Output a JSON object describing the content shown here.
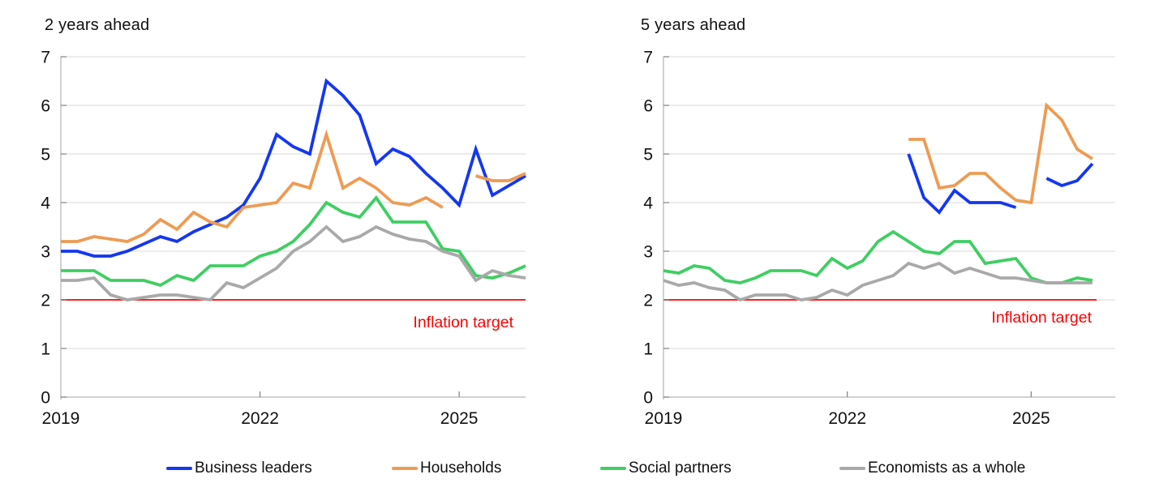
{
  "colors": {
    "blue": "#1437f0",
    "orange": "#ee9b53",
    "green": "#3fce63",
    "gray": "#a9a9a9",
    "red": "#ff0000",
    "grid": "#d9d9d9",
    "axis": "#b8b8b8",
    "tick": "#808080",
    "text": "#111111"
  },
  "legend": {
    "items": [
      {
        "label": "Business leaders",
        "color": "blue"
      },
      {
        "label": "Households",
        "color": "orange"
      },
      {
        "label": "Social partners",
        "color": "green"
      },
      {
        "label": "Economists as a whole",
        "color": "gray"
      }
    ]
  },
  "chart_data": [
    {
      "type": "line",
      "title": "2 years ahead",
      "x": [
        "2019Q1",
        "2019Q2",
        "2019Q3",
        "2019Q4",
        "2020Q1",
        "2020Q2",
        "2020Q3",
        "2020Q4",
        "2021Q1",
        "2021Q2",
        "2021Q3",
        "2021Q4",
        "2022Q1",
        "2022Q2",
        "2022Q3",
        "2022Q4",
        "2023Q1",
        "2023Q2",
        "2023Q3",
        "2023Q4",
        "2024Q1",
        "2024Q2",
        "2024Q3",
        "2024Q4",
        "2025Q1",
        "2025Q2",
        "2025Q3",
        "2025Q4",
        "2026Q1"
      ],
      "xticks": [
        {
          "label": "2019",
          "index": 0
        },
        {
          "label": "2022",
          "index": 12
        },
        {
          "label": "2025",
          "index": 24
        }
      ],
      "ylim": [
        0,
        7
      ],
      "yticks": [
        "0",
        "1",
        "2",
        "3",
        "4",
        "5",
        "6",
        "7"
      ],
      "grid": true,
      "target_line": {
        "value": 2,
        "label": "Inflation target"
      },
      "series": [
        {
          "name": "Business leaders",
          "color": "blue",
          "values": [
            3.0,
            3.0,
            2.9,
            2.9,
            3.0,
            3.15,
            3.3,
            3.2,
            3.4,
            3.55,
            3.7,
            3.95,
            4.5,
            5.4,
            5.15,
            5.0,
            6.5,
            6.2,
            5.8,
            4.8,
            5.1,
            4.95,
            4.6,
            4.3,
            3.95,
            5.1,
            4.15,
            4.35,
            4.55
          ]
        },
        {
          "name": "Households",
          "color": "orange",
          "values": [
            3.2,
            3.2,
            3.3,
            3.25,
            3.2,
            3.35,
            3.65,
            3.45,
            3.8,
            3.6,
            3.5,
            3.9,
            3.95,
            4.0,
            4.4,
            4.3,
            5.4,
            4.3,
            4.5,
            4.3,
            4.0,
            3.95,
            4.1,
            3.9,
            null,
            4.55,
            4.45,
            4.45,
            4.6
          ]
        },
        {
          "name": "Social partners",
          "color": "green",
          "values": [
            2.6,
            2.6,
            2.6,
            2.4,
            2.4,
            2.4,
            2.3,
            2.5,
            2.4,
            2.7,
            2.7,
            2.7,
            2.9,
            3.0,
            3.2,
            3.55,
            4.0,
            3.8,
            3.7,
            4.1,
            3.6,
            3.6,
            3.6,
            3.05,
            3.0,
            2.5,
            2.45,
            2.55,
            2.7
          ]
        },
        {
          "name": "Economists as a whole",
          "color": "gray",
          "values": [
            2.4,
            2.4,
            2.45,
            2.1,
            2.0,
            2.05,
            2.1,
            2.1,
            2.05,
            2.0,
            2.35,
            2.25,
            2.45,
            2.65,
            3.0,
            3.2,
            3.5,
            3.2,
            3.3,
            3.5,
            3.35,
            3.25,
            3.2,
            3.0,
            2.9,
            2.4,
            2.6,
            2.5,
            2.45
          ]
        }
      ]
    },
    {
      "type": "line",
      "title": "5 years ahead",
      "x": [
        "2019Q1",
        "2019Q2",
        "2019Q3",
        "2019Q4",
        "2020Q1",
        "2020Q2",
        "2020Q3",
        "2020Q4",
        "2021Q1",
        "2021Q2",
        "2021Q3",
        "2021Q4",
        "2022Q1",
        "2022Q2",
        "2022Q3",
        "2022Q4",
        "2023Q1",
        "2023Q2",
        "2023Q3",
        "2023Q4",
        "2024Q1",
        "2024Q2",
        "2024Q3",
        "2024Q4",
        "2025Q1",
        "2025Q2",
        "2025Q3",
        "2025Q4",
        "2026Q1"
      ],
      "xticks": [
        {
          "label": "2019",
          "index": 0
        },
        {
          "label": "2022",
          "index": 12
        },
        {
          "label": "2025",
          "index": 24
        }
      ],
      "ylim": [
        0,
        7
      ],
      "yticks": [
        "0",
        "1",
        "2",
        "3",
        "4",
        "5",
        "6",
        "7"
      ],
      "grid": true,
      "target_line": {
        "value": 2,
        "label": "Inflation target"
      },
      "series": [
        {
          "name": "Business leaders",
          "color": "blue",
          "values": [
            null,
            null,
            null,
            null,
            null,
            null,
            null,
            null,
            null,
            null,
            null,
            null,
            null,
            null,
            null,
            null,
            5.0,
            4.1,
            3.8,
            4.25,
            4.0,
            4.0,
            4.0,
            3.9,
            null,
            4.5,
            4.35,
            4.45,
            4.8
          ]
        },
        {
          "name": "Households",
          "color": "orange",
          "values": [
            null,
            null,
            null,
            null,
            null,
            null,
            null,
            null,
            null,
            null,
            null,
            null,
            null,
            null,
            null,
            null,
            5.3,
            5.3,
            4.3,
            4.35,
            4.6,
            4.6,
            4.3,
            4.05,
            4.0,
            6.0,
            5.7,
            5.1,
            4.9
          ]
        },
        {
          "name": "Social partners",
          "color": "green",
          "values": [
            2.6,
            2.55,
            2.7,
            2.65,
            2.4,
            2.35,
            2.45,
            2.6,
            2.6,
            2.6,
            2.5,
            2.85,
            2.65,
            2.8,
            3.2,
            3.4,
            3.2,
            3.0,
            2.95,
            3.2,
            3.2,
            2.75,
            2.8,
            2.85,
            2.45,
            2.35,
            2.35,
            2.45,
            2.4
          ]
        },
        {
          "name": "Economists as a whole",
          "color": "gray",
          "values": [
            2.4,
            2.3,
            2.35,
            2.25,
            2.2,
            2.0,
            2.1,
            2.1,
            2.1,
            2.0,
            2.05,
            2.2,
            2.1,
            2.3,
            2.4,
            2.5,
            2.75,
            2.65,
            2.75,
            2.55,
            2.65,
            2.55,
            2.45,
            2.45,
            2.4,
            2.35,
            2.35,
            2.35,
            2.35
          ]
        }
      ]
    }
  ]
}
